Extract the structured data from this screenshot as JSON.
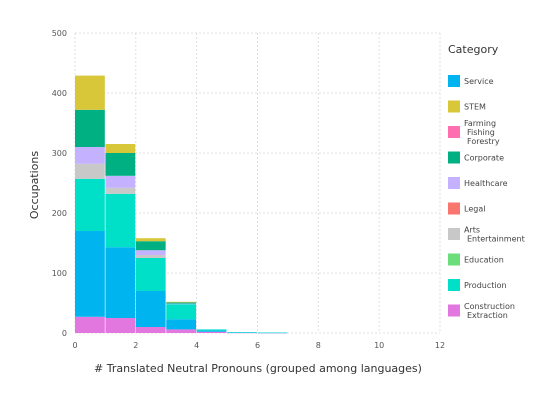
{
  "chart_data": {
    "type": "bar",
    "stacked": true,
    "xlabel": "# Translated Neutral Pronouns (grouped among languages)",
    "ylabel": "Occupations",
    "xlim": [
      0,
      12
    ],
    "ylim": [
      0,
      500
    ],
    "xticks": [
      "0",
      "2",
      "4",
      "6",
      "8",
      "10",
      "12"
    ],
    "yticks": [
      "0",
      "100",
      "200",
      "300",
      "400",
      "500"
    ],
    "grid": true,
    "legend": {
      "title": "Category",
      "placement": "right"
    },
    "bins": [
      [
        0,
        1
      ],
      [
        1,
        2
      ],
      [
        2,
        3
      ],
      [
        3,
        4
      ],
      [
        4,
        5
      ],
      [
        5,
        6
      ],
      [
        6,
        7
      ]
    ],
    "series": [
      {
        "name": "Construction Extraction",
        "label_lines": [
          "Construction",
          "Extraction"
        ],
        "color": "#e377e0",
        "values": [
          27,
          25,
          10,
          6,
          2,
          0.5,
          0.3
        ]
      },
      {
        "name": "Service",
        "label_lines": [
          "Service"
        ],
        "color": "#00b4f0",
        "values": [
          143,
          118,
          60,
          17,
          2,
          0.5,
          0.3
        ]
      },
      {
        "name": "Production",
        "label_lines": [
          "Production"
        ],
        "color": "#00e0c8",
        "values": [
          87,
          89,
          55,
          25,
          2,
          0.3,
          0.2
        ]
      },
      {
        "name": "Education",
        "label_lines": [
          "Education"
        ],
        "color": "#6bdd7b",
        "values": [
          0,
          0,
          0,
          0,
          0,
          0,
          0
        ]
      },
      {
        "name": "Arts Entertainment",
        "label_lines": [
          "Arts",
          "Entertainment"
        ],
        "color": "#c8c8c8",
        "values": [
          25,
          10,
          5,
          0,
          0,
          0,
          0
        ]
      },
      {
        "name": "Legal",
        "label_lines": [
          "Legal"
        ],
        "color": "#f8766d",
        "values": [
          0,
          0,
          0,
          0,
          0,
          0,
          0
        ]
      },
      {
        "name": "Healthcare",
        "label_lines": [
          "Healthcare"
        ],
        "color": "#c4b1ff",
        "values": [
          28,
          20,
          8,
          1,
          0,
          0,
          0
        ]
      },
      {
        "name": "Corporate",
        "label_lines": [
          "Corporate"
        ],
        "color": "#00b082",
        "values": [
          62,
          38,
          15,
          2,
          0,
          0,
          0
        ]
      },
      {
        "name": "Farming Fishing Forestry",
        "label_lines": [
          "Farming",
          "Fishing",
          "Forestry"
        ],
        "color": "#ff6fb0",
        "values": [
          0,
          0,
          0,
          0,
          0,
          0,
          0
        ]
      },
      {
        "name": "STEM",
        "label_lines": [
          "STEM"
        ],
        "color": "#d9c73a",
        "values": [
          57,
          15,
          5,
          1,
          0,
          0,
          0
        ]
      }
    ],
    "legend_order": [
      "Service",
      "STEM",
      "Farming Fishing Forestry",
      "Corporate",
      "Healthcare",
      "Legal",
      "Arts Entertainment",
      "Education",
      "Production",
      "Construction Extraction"
    ]
  }
}
